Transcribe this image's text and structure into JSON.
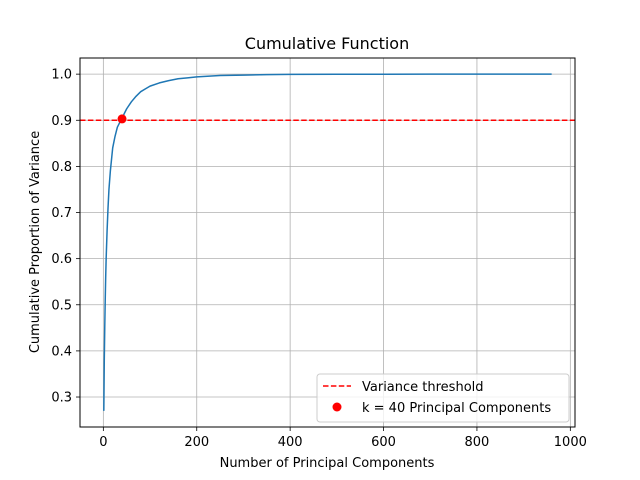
{
  "chart_data": {
    "type": "line",
    "title": "Cumulative Function",
    "xlabel": "Number of Principal Components",
    "ylabel": "Cumulative Proportion of Variance",
    "xlim": [
      -50,
      1010
    ],
    "ylim": [
      0.235,
      1.035
    ],
    "xticks": [
      0,
      200,
      400,
      600,
      800,
      1000
    ],
    "yticks": [
      0.3,
      0.4,
      0.5,
      0.6,
      0.7,
      0.8,
      0.9,
      1.0
    ],
    "xtick_labels": [
      "0",
      "200",
      "400",
      "600",
      "800",
      "1000"
    ],
    "ytick_labels": [
      "0.3",
      "0.4",
      "0.5",
      "0.6",
      "0.7",
      "0.8",
      "0.9",
      "1.0"
    ],
    "grid": true,
    "legend_placement": "lower-right",
    "series": [
      {
        "kind": "line",
        "color": "#1f77b4",
        "x": [
          1,
          2,
          3,
          4,
          5,
          6,
          8,
          10,
          12,
          15,
          18,
          20,
          25,
          30,
          35,
          40,
          45,
          50,
          60,
          70,
          80,
          90,
          100,
          120,
          140,
          160,
          180,
          200,
          250,
          300,
          350,
          400,
          500,
          600,
          700,
          800,
          900,
          960
        ],
        "y": [
          0.27,
          0.38,
          0.45,
          0.51,
          0.56,
          0.6,
          0.66,
          0.71,
          0.75,
          0.79,
          0.82,
          0.84,
          0.865,
          0.885,
          0.895,
          0.903,
          0.915,
          0.925,
          0.94,
          0.952,
          0.962,
          0.968,
          0.974,
          0.981,
          0.986,
          0.99,
          0.992,
          0.994,
          0.997,
          0.998,
          0.999,
          0.9995,
          0.9998,
          0.9999,
          1.0,
          1.0,
          1.0,
          1.0
        ]
      }
    ],
    "threshold": {
      "name": "Variance threshold",
      "y": 0.9,
      "color": "#ff0000",
      "style": "dashed"
    },
    "marker_point": {
      "name": "k = 40 Principal Components",
      "x": 40,
      "y": 0.903,
      "color": "#ff0000"
    }
  }
}
